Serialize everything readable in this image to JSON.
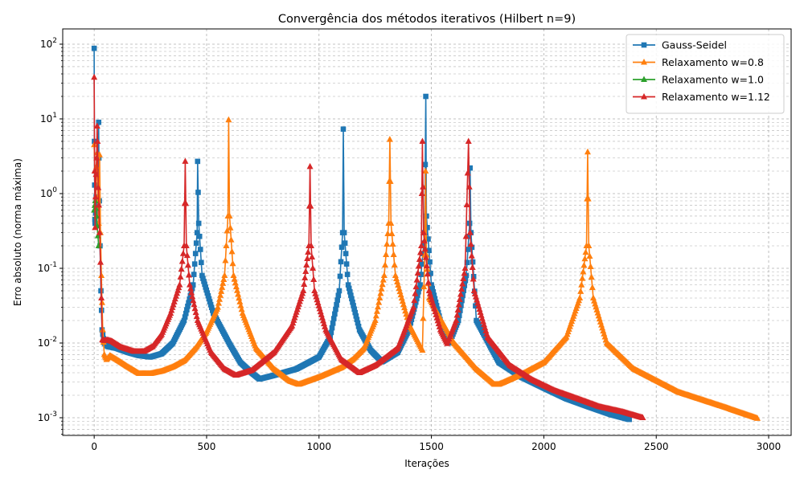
{
  "chart_data": {
    "type": "line",
    "title": "Convergência dos métodos iterativos (Hilbert n=9)",
    "xlabel": "Iterações",
    "ylabel": "Erro absoluto (norma máxima)",
    "xlim": [
      -140,
      3100
    ],
    "ylim": [
      0.00058,
      160
    ],
    "yscale": "log",
    "grid": true,
    "legend_position": "top-right",
    "x_ticks": [
      0,
      500,
      1000,
      1500,
      2000,
      2500,
      3000
    ],
    "x_tick_labels": [
      "0",
      "500",
      "1000",
      "1500",
      "2000",
      "2500",
      "3000"
    ],
    "y_ticks": [
      0.001,
      0.01,
      0.1,
      1,
      10,
      100
    ],
    "y_tick_labels": [
      "10^-3",
      "10^-2",
      "10^-1",
      "10^0",
      "10^1",
      "10^2"
    ],
    "series": [
      {
        "name": "Gauss-Seidel",
        "color": "#1f77b4",
        "marker": "square",
        "points": [
          [
            0,
            88
          ],
          [
            1,
            5
          ],
          [
            2,
            1.3
          ],
          [
            3,
            0.45
          ],
          [
            4,
            0.4
          ],
          [
            6,
            0.55
          ],
          [
            9,
            0.9
          ],
          [
            12,
            0.5
          ],
          [
            16,
            0.6
          ],
          [
            20,
            9
          ],
          [
            21,
            3
          ],
          [
            23,
            0.8
          ],
          [
            26,
            0.2
          ],
          [
            30,
            0.05
          ],
          [
            35,
            0.015
          ],
          [
            45,
            0.01
          ],
          [
            60,
            0.009
          ],
          [
            100,
            0.0085
          ],
          [
            150,
            0.0075
          ],
          [
            200,
            0.0068
          ],
          [
            250,
            0.0065
          ],
          [
            300,
            0.0072
          ],
          [
            350,
            0.01
          ],
          [
            400,
            0.02
          ],
          [
            440,
            0.06
          ],
          [
            458,
            0.3
          ],
          [
            460,
            2.7
          ],
          [
            465,
            0.4
          ],
          [
            480,
            0.08
          ],
          [
            530,
            0.025
          ],
          [
            600,
            0.01
          ],
          [
            650,
            0.0055
          ],
          [
            700,
            0.004
          ],
          [
            735,
            0.0033
          ],
          [
            800,
            0.0037
          ],
          [
            900,
            0.0045
          ],
          [
            1000,
            0.0065
          ],
          [
            1050,
            0.012
          ],
          [
            1090,
            0.05
          ],
          [
            1105,
            0.3
          ],
          [
            1108,
            7.3
          ],
          [
            1112,
            0.3
          ],
          [
            1130,
            0.06
          ],
          [
            1180,
            0.015
          ],
          [
            1230,
            0.008
          ],
          [
            1280,
            0.0056
          ],
          [
            1350,
            0.0075
          ],
          [
            1400,
            0.015
          ],
          [
            1450,
            0.06
          ],
          [
            1470,
            0.3
          ],
          [
            1475,
            20
          ],
          [
            1478,
            0.5
          ],
          [
            1500,
            0.06
          ],
          [
            1550,
            0.015
          ],
          [
            1580,
            0.01
          ],
          [
            1620,
            0.02
          ],
          [
            1655,
            0.08
          ],
          [
            1670,
            0.4
          ],
          [
            1672,
            2.2
          ],
          [
            1676,
            0.3
          ],
          [
            1700,
            0.02
          ],
          [
            1800,
            0.0055
          ],
          [
            1900,
            0.0035
          ],
          [
            2000,
            0.0025
          ],
          [
            2100,
            0.0018
          ],
          [
            2200,
            0.0014
          ],
          [
            2300,
            0.0011
          ],
          [
            2380,
            0.00095
          ]
        ]
      },
      {
        "name": "Relaxamento w=0.8",
        "color": "#ff7f0e",
        "marker": "triangle",
        "points": [
          [
            0,
            4.5
          ],
          [
            3,
            2
          ],
          [
            6,
            0.8
          ],
          [
            10,
            2.3
          ],
          [
            13,
            3.5
          ],
          [
            16,
            0.9
          ],
          [
            20,
            0.4
          ],
          [
            24,
            3.3
          ],
          [
            28,
            0.3
          ],
          [
            32,
            0.08
          ],
          [
            38,
            0.015
          ],
          [
            45,
            0.007
          ],
          [
            55,
            0.006
          ],
          [
            70,
            0.0068
          ],
          [
            100,
            0.006
          ],
          [
            150,
            0.0048
          ],
          [
            200,
            0.0039
          ],
          [
            250,
            0.0039
          ],
          [
            300,
            0.0042
          ],
          [
            350,
            0.0048
          ],
          [
            400,
            0.0058
          ],
          [
            450,
            0.0085
          ],
          [
            500,
            0.014
          ],
          [
            550,
            0.03
          ],
          [
            580,
            0.08
          ],
          [
            595,
            0.5
          ],
          [
            598,
            9.7
          ],
          [
            602,
            0.5
          ],
          [
            620,
            0.08
          ],
          [
            660,
            0.025
          ],
          [
            720,
            0.0085
          ],
          [
            800,
            0.0045
          ],
          [
            870,
            0.0031
          ],
          [
            910,
            0.0028
          ],
          [
            1000,
            0.0035
          ],
          [
            1100,
            0.0047
          ],
          [
            1150,
            0.006
          ],
          [
            1200,
            0.0085
          ],
          [
            1250,
            0.02
          ],
          [
            1290,
            0.08
          ],
          [
            1310,
            0.4
          ],
          [
            1315,
            5.3
          ],
          [
            1320,
            0.4
          ],
          [
            1340,
            0.08
          ],
          [
            1400,
            0.018
          ],
          [
            1460,
            0.008
          ],
          [
            1470,
            0.15
          ],
          [
            1474,
            2
          ],
          [
            1478,
            0.15
          ],
          [
            1490,
            0.04
          ],
          [
            1600,
            0.01
          ],
          [
            1700,
            0.0045
          ],
          [
            1780,
            0.0028
          ],
          [
            1800,
            0.0028
          ],
          [
            1900,
            0.0038
          ],
          [
            2000,
            0.0055
          ],
          [
            2100,
            0.012
          ],
          [
            2160,
            0.04
          ],
          [
            2190,
            0.2
          ],
          [
            2195,
            3.6
          ],
          [
            2200,
            0.2
          ],
          [
            2220,
            0.04
          ],
          [
            2280,
            0.01
          ],
          [
            2400,
            0.0045
          ],
          [
            2600,
            0.0022
          ],
          [
            2800,
            0.0014
          ],
          [
            2950,
            0.00098
          ]
        ]
      },
      {
        "name": "Relaxamento w=1.0",
        "color": "#2ca02c",
        "marker": "triangle",
        "points": [
          [
            0,
            0.6
          ],
          [
            5,
            0.8
          ],
          [
            10,
            0.5
          ],
          [
            20,
            0.2
          ]
        ]
      },
      {
        "name": "Relaxamento w=1.12",
        "color": "#d62728",
        "marker": "triangle",
        "points": [
          [
            0,
            36
          ],
          [
            2,
            2
          ],
          [
            4,
            0.35
          ],
          [
            6,
            0.9
          ],
          [
            8,
            1.8
          ],
          [
            11,
            3
          ],
          [
            13,
            8
          ],
          [
            15,
            5
          ],
          [
            18,
            1.2
          ],
          [
            21,
            0.7
          ],
          [
            24,
            0.3
          ],
          [
            28,
            0.12
          ],
          [
            32,
            0.04
          ],
          [
            36,
            0.011
          ],
          [
            45,
            0.0108
          ],
          [
            60,
            0.011
          ],
          [
            80,
            0.0105
          ],
          [
            120,
            0.0088
          ],
          [
            180,
            0.0077
          ],
          [
            220,
            0.0077
          ],
          [
            260,
            0.009
          ],
          [
            300,
            0.013
          ],
          [
            340,
            0.025
          ],
          [
            380,
            0.06
          ],
          [
            400,
            0.2
          ],
          [
            405,
            2.7
          ],
          [
            410,
            0.2
          ],
          [
            425,
            0.06
          ],
          [
            460,
            0.02
          ],
          [
            520,
            0.0075
          ],
          [
            580,
            0.0045
          ],
          [
            630,
            0.0037
          ],
          [
            700,
            0.0043
          ],
          [
            800,
            0.0075
          ],
          [
            880,
            0.017
          ],
          [
            930,
            0.05
          ],
          [
            955,
            0.2
          ],
          [
            960,
            2.3
          ],
          [
            965,
            0.2
          ],
          [
            980,
            0.05
          ],
          [
            1030,
            0.015
          ],
          [
            1100,
            0.006
          ],
          [
            1180,
            0.004
          ],
          [
            1250,
            0.005
          ],
          [
            1350,
            0.0085
          ],
          [
            1420,
            0.03
          ],
          [
            1455,
            0.2
          ],
          [
            1460,
            5
          ],
          [
            1465,
            0.3
          ],
          [
            1490,
            0.05
          ],
          [
            1540,
            0.015
          ],
          [
            1570,
            0.0098
          ],
          [
            1610,
            0.02
          ],
          [
            1650,
            0.1
          ],
          [
            1665,
            5
          ],
          [
            1672,
            0.3
          ],
          [
            1690,
            0.05
          ],
          [
            1750,
            0.012
          ],
          [
            1850,
            0.005
          ],
          [
            1950,
            0.0032
          ],
          [
            2050,
            0.0023
          ],
          [
            2150,
            0.0018
          ],
          [
            2250,
            0.0014
          ],
          [
            2350,
            0.0012
          ],
          [
            2440,
            0.001
          ]
        ]
      }
    ]
  }
}
